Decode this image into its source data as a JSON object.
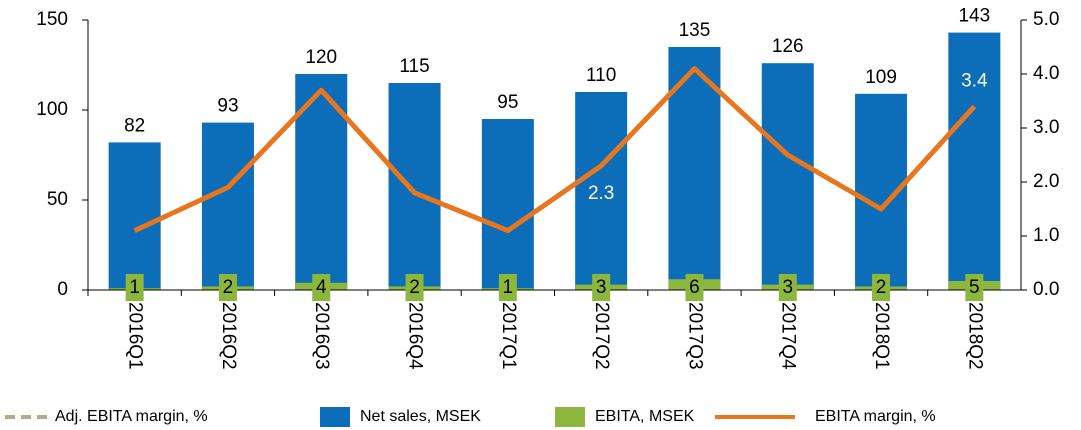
{
  "chart_data": {
    "type": "bar",
    "categories": [
      "2016Q1",
      "2016Q2",
      "2016Q3",
      "2016Q4",
      "2017Q1",
      "2017Q2",
      "2017Q3",
      "2017Q4",
      "2018Q1",
      "2018Q2"
    ],
    "series": [
      {
        "name": "Adj. EBITA margin, %",
        "type": "line",
        "dashed": true,
        "axis": "y2",
        "color": "#b5a98a",
        "values": [
          null,
          null,
          null,
          null,
          null,
          null,
          null,
          null,
          null,
          null
        ]
      },
      {
        "name": "Net sales, MSEK",
        "type": "bar",
        "axis": "y",
        "color": "#0c6db8",
        "values": [
          82,
          93,
          120,
          115,
          95,
          110,
          135,
          126,
          109,
          143
        ]
      },
      {
        "name": "EBITA, MSEK",
        "type": "bar",
        "axis": "y",
        "color": "#8cb63c",
        "values": [
          1,
          2,
          4,
          2,
          1,
          3,
          6,
          3,
          2,
          5
        ]
      },
      {
        "name": "EBITA margin, %",
        "type": "line",
        "axis": "y2",
        "color": "#e8761e",
        "values": [
          1.1,
          1.9,
          3.7,
          1.8,
          1.1,
          2.3,
          4.1,
          2.5,
          1.5,
          3.4
        ],
        "value_labels": [
          null,
          null,
          null,
          null,
          null,
          "2.3",
          null,
          null,
          null,
          "3.4"
        ]
      }
    ],
    "ylim": [
      0,
      150
    ],
    "yticks": [
      0,
      50,
      100,
      150
    ],
    "y2lim": [
      0,
      5
    ],
    "y2ticks": [
      {
        "value": 0,
        "label": "0.0"
      },
      {
        "value": 1,
        "label": "1.0"
      },
      {
        "value": 2,
        "label": "2.0"
      },
      {
        "value": 3,
        "label": "3.0"
      },
      {
        "value": 4,
        "label": "4.0"
      },
      {
        "value": 5,
        "label": "5.0"
      }
    ]
  }
}
